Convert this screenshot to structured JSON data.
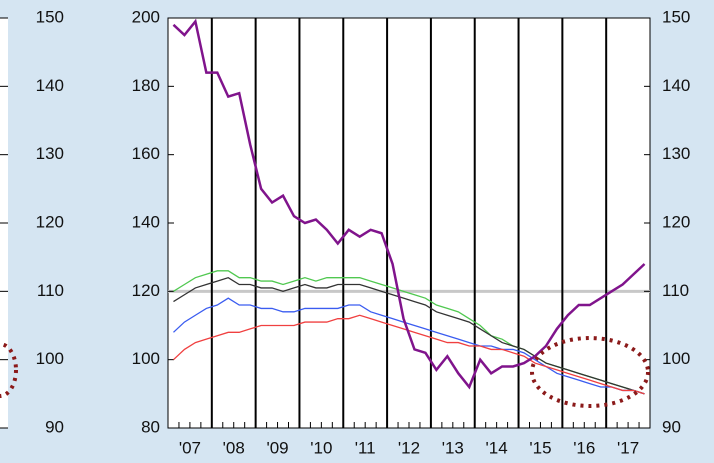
{
  "chart_data": [
    {
      "type": "axis",
      "ylim": [
        90,
        150
      ],
      "yticks": [
        90,
        100,
        110,
        120,
        130,
        140,
        150
      ]
    },
    {
      "type": "line",
      "x": [
        2007.125,
        2007.375,
        2007.625,
        2007.875,
        2008.125,
        2008.375,
        2008.625,
        2008.875,
        2009.125,
        2009.375,
        2009.625,
        2009.875,
        2010.125,
        2010.375,
        2010.625,
        2010.875,
        2011.125,
        2011.375,
        2011.625,
        2011.875,
        2012.125,
        2012.375,
        2012.625,
        2012.875,
        2013.125,
        2013.375,
        2013.625,
        2013.875,
        2014.125,
        2014.375,
        2014.625,
        2014.875,
        2015.125,
        2015.375,
        2015.625,
        2015.875,
        2016.125,
        2016.375,
        2016.625,
        2016.875,
        2017.125,
        2017.375,
        2017.625,
        2017.875
      ],
      "xlim": [
        2007,
        2018
      ],
      "xticks": [
        {
          "value": 2007.5,
          "label": "'07"
        },
        {
          "value": 2008.5,
          "label": "'08"
        },
        {
          "value": 2009.5,
          "label": "'09"
        },
        {
          "value": 2010.5,
          "label": "'10"
        },
        {
          "value": 2011.5,
          "label": "'11"
        },
        {
          "value": 2012.5,
          "label": "'12"
        },
        {
          "value": 2013.5,
          "label": "'13"
        },
        {
          "value": 2014.5,
          "label": "'14"
        },
        {
          "value": 2015.5,
          "label": "'15"
        },
        {
          "value": 2016.5,
          "label": "'16"
        },
        {
          "value": 2017.5,
          "label": "'17"
        }
      ],
      "ylim": [
        80,
        200
      ],
      "yticks": [
        80,
        100,
        120,
        140,
        160,
        180,
        200
      ],
      "y2lim": [
        90,
        150
      ],
      "y2ticks": [
        90,
        100,
        110,
        120,
        130,
        140,
        150
      ],
      "hline": 120,
      "series": [
        {
          "color": "#50c850",
          "values": [
            120,
            122,
            124,
            125,
            126,
            126,
            124,
            124,
            123,
            123,
            122,
            123,
            124,
            123,
            124,
            124,
            124,
            124,
            123,
            122,
            121,
            120,
            119,
            118,
            116,
            115,
            114,
            112,
            110,
            107,
            106,
            104,
            103,
            101,
            99,
            98,
            97,
            96,
            95,
            94,
            93,
            92,
            91,
            90
          ]
        },
        {
          "color": "#333333",
          "values": [
            117,
            119,
            121,
            122,
            123,
            124,
            122,
            122,
            121,
            121,
            120,
            121,
            122,
            121,
            121,
            122,
            122,
            122,
            121,
            120,
            119,
            118,
            117,
            116,
            114,
            113,
            112,
            111,
            109,
            107,
            105,
            104,
            103,
            101,
            99,
            98,
            97,
            96,
            95,
            94,
            93,
            92,
            91,
            90
          ]
        },
        {
          "color": "#3a5cf0",
          "values": [
            108,
            111,
            113,
            115,
            116,
            118,
            116,
            116,
            115,
            115,
            114,
            114,
            115,
            115,
            115,
            115,
            116,
            116,
            114,
            113,
            112,
            111,
            110,
            109,
            108,
            107,
            106,
            105,
            104,
            104,
            103,
            103,
            102,
            100,
            98,
            96,
            95,
            94,
            93,
            92,
            92,
            91,
            91,
            90
          ]
        },
        {
          "color": "#f04040",
          "values": [
            100,
            103,
            105,
            106,
            107,
            108,
            108,
            109,
            110,
            110,
            110,
            110,
            111,
            111,
            111,
            112,
            112,
            113,
            112,
            111,
            110,
            109,
            108,
            107,
            106,
            105,
            105,
            104,
            104,
            103,
            103,
            102,
            101,
            99,
            98,
            97,
            96,
            95,
            94,
            93,
            92,
            91,
            91,
            90
          ]
        },
        {
          "color": "#80148c",
          "width": 2.5,
          "values": [
            198,
            195,
            199,
            184,
            184,
            177,
            178,
            163,
            150,
            146,
            148,
            142,
            140,
            141,
            138,
            134,
            138,
            136,
            138,
            137,
            128,
            112,
            103,
            102,
            97,
            101,
            96,
            92,
            100,
            96,
            98,
            98,
            99,
            101,
            104,
            109,
            113,
            116,
            116,
            118,
            120,
            122,
            125,
            128
          ]
        }
      ]
    }
  ]
}
